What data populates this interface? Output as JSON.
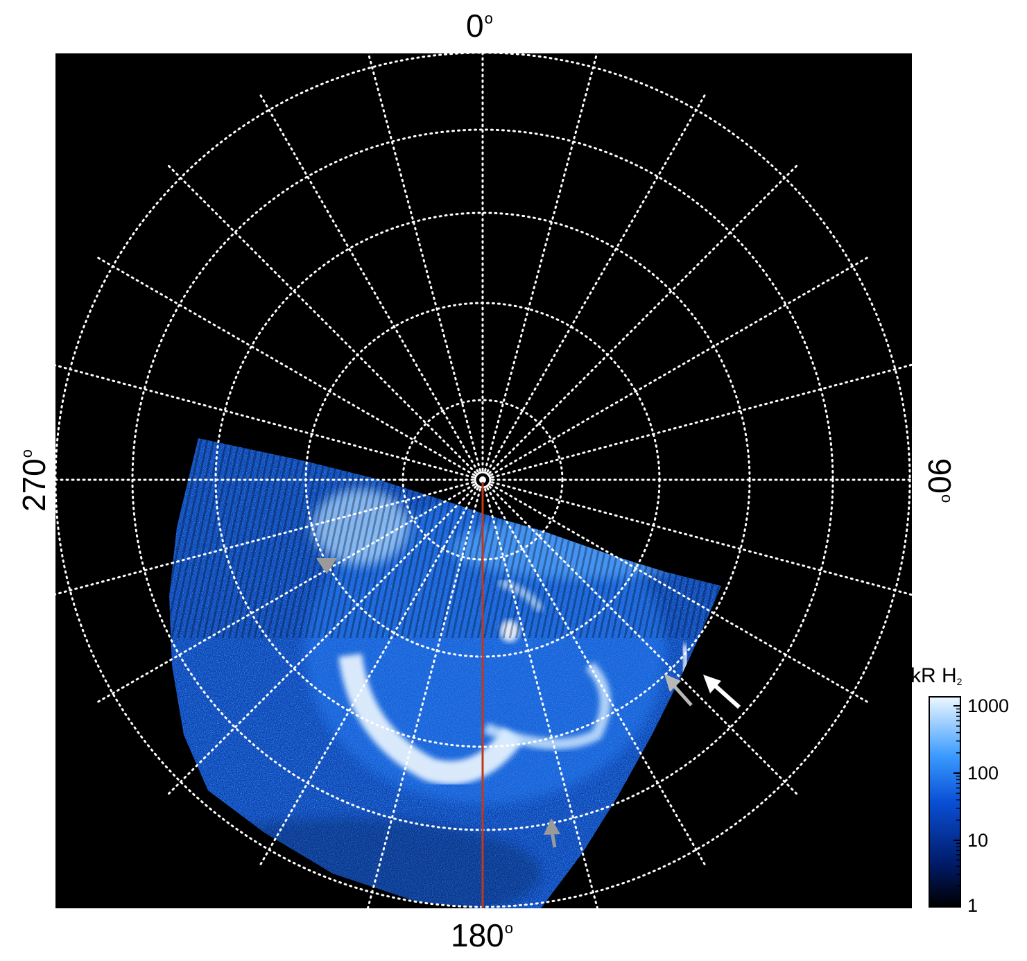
{
  "polar_plot": {
    "labels": {
      "top": "0",
      "right": "90",
      "bottom": "180",
      "left": "270",
      "degree_symbol": "o"
    },
    "background_color": "#000000",
    "grid_color": "#ffffff",
    "meridian_line_color": "#c0391b",
    "arrows": [
      {
        "color": "#9a9a9a",
        "name": "grey-arrow-upper-left"
      },
      {
        "color": "#b8b8b8",
        "name": "grey-arrow-right"
      },
      {
        "color": "#ffffff",
        "name": "white-arrow-right"
      },
      {
        "color": "#9a9a9a",
        "name": "grey-arrow-bottom"
      }
    ]
  },
  "colorbar": {
    "title_main": "kR H",
    "title_sub": "2",
    "ticks": [
      "1000",
      "100",
      "10",
      "1"
    ],
    "colors": [
      "#000000",
      "#001a66",
      "#0a4fd6",
      "#3a9bff",
      "#e8f6ff"
    ]
  }
}
